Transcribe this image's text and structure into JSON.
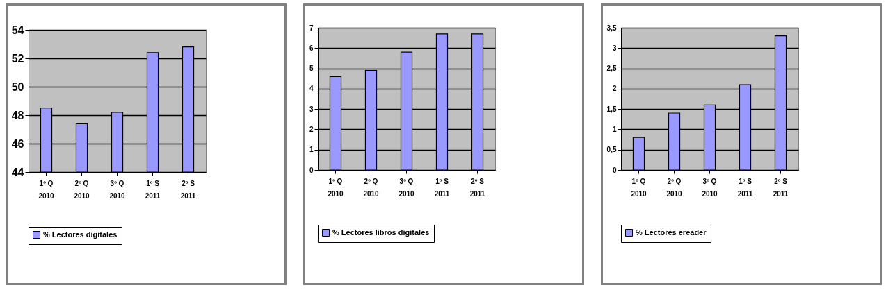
{
  "chart_data": [
    {
      "type": "bar",
      "categories": [
        "1º Q\n2010",
        "2º Q\n2010",
        "3º Q\n2010",
        "1º S\n2011",
        "2º S\n2011"
      ],
      "series": [
        {
          "name": "% Lectores digitales",
          "color": "#9999ff",
          "values": [
            48.5,
            47.4,
            48.2,
            52.4,
            52.8
          ]
        }
      ],
      "ylim": [
        44,
        54
      ],
      "yticks": [
        44,
        46,
        48,
        50,
        52,
        54
      ],
      "grid": "y",
      "legend": "bottom"
    },
    {
      "type": "bar",
      "categories": [
        "1º Q\n2010",
        "2º Q\n2010",
        "3º Q\n2010",
        "1º S\n2011",
        "2º S\n2011"
      ],
      "series": [
        {
          "name": "% Lectores libros digitales",
          "color": "#9999ff",
          "values": [
            4.6,
            4.9,
            5.8,
            6.7,
            6.7
          ]
        }
      ],
      "ylim": [
        0,
        7
      ],
      "yticks": [
        0,
        1,
        2,
        3,
        4,
        5,
        6,
        7
      ],
      "grid": "y",
      "legend": "bottom"
    },
    {
      "type": "bar",
      "categories": [
        "1º Q\n2010",
        "2º Q\n2010",
        "3º Q\n2010",
        "1º S\n2011",
        "2º S\n2011"
      ],
      "series": [
        {
          "name": "% Lectores ereader",
          "color": "#9999ff",
          "values": [
            0.8,
            1.4,
            1.6,
            2.1,
            3.3
          ]
        }
      ],
      "ylim": [
        0,
        3.5
      ],
      "yticks": [
        0,
        {
          "value": 0.5,
          "label": "0,5"
        },
        1,
        {
          "value": 1.5,
          "label": "1,5"
        },
        2,
        {
          "value": 2.5,
          "label": "2,5"
        },
        3,
        {
          "value": 3.5,
          "label": "3,5"
        }
      ],
      "grid": "y",
      "legend": "bottom"
    }
  ]
}
